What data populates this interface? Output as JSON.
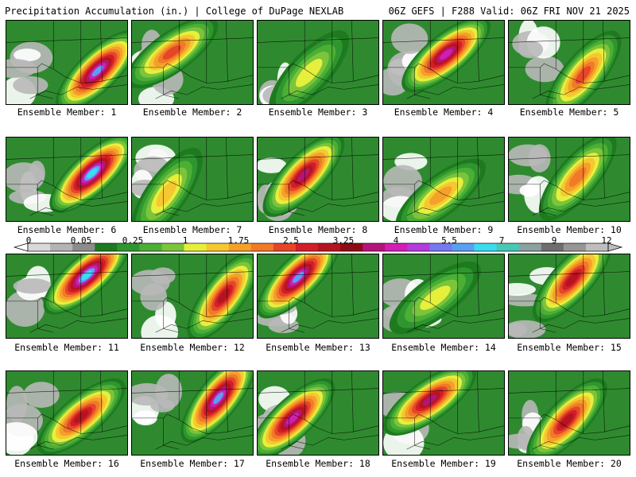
{
  "header": {
    "left": "Precipitation Accumulation (in.) | College of DuPage NEXLAB",
    "right": "06Z GEFS | F288 Valid: 06Z FRI NOV 21 2025"
  },
  "colorbar": {
    "labels": [
      "0",
      "0.05",
      "0.25",
      "1",
      "1.75",
      "2.5",
      "3.25",
      "4",
      "5.5",
      "7",
      "9",
      "12"
    ],
    "colors": [
      "#d9d9d9",
      "#b3b3b3",
      "#8c8c8c",
      "#1e7a1e",
      "#2f962f",
      "#4caf35",
      "#7cc43c",
      "#e6f03c",
      "#f5c832",
      "#f5a028",
      "#f07a28",
      "#e64628",
      "#d21e28",
      "#b4141e",
      "#8c0a14",
      "#b4147a",
      "#d21eb4",
      "#b43cdc",
      "#7878f0",
      "#5aa0f0",
      "#3cdcf0",
      "#46c8b4",
      "#8ca0a0",
      "#6e6e6e",
      "#969696",
      "#bebebe"
    ]
  },
  "panels": [
    {
      "caption": "Ensemble Member: 1",
      "intensity": 0.95,
      "seed": 1
    },
    {
      "caption": "Ensemble Member: 2",
      "intensity": 0.6,
      "seed": 2
    },
    {
      "caption": "Ensemble Member: 3",
      "intensity": 0.35,
      "seed": 3
    },
    {
      "caption": "Ensemble Member: 4",
      "intensity": 0.85,
      "seed": 4
    },
    {
      "caption": "Ensemble Member: 5",
      "intensity": 0.6,
      "seed": 5
    },
    {
      "caption": "Ensemble Member: 6",
      "intensity": 1.0,
      "seed": 6
    },
    {
      "caption": "Ensemble Member: 7",
      "intensity": 0.4,
      "seed": 7
    },
    {
      "caption": "Ensemble Member: 8",
      "intensity": 0.8,
      "seed": 8
    },
    {
      "caption": "Ensemble Member: 9",
      "intensity": 0.45,
      "seed": 9
    },
    {
      "caption": "Ensemble Member: 10",
      "intensity": 0.55,
      "seed": 10
    },
    {
      "caption": "Ensemble Member: 11",
      "intensity": 1.0,
      "seed": 11
    },
    {
      "caption": "Ensemble Member: 12",
      "intensity": 0.7,
      "seed": 12
    },
    {
      "caption": "Ensemble Member: 13",
      "intensity": 0.95,
      "seed": 13
    },
    {
      "caption": "Ensemble Member: 14",
      "intensity": 0.3,
      "seed": 14
    },
    {
      "caption": "Ensemble Member: 15",
      "intensity": 0.75,
      "seed": 15
    },
    {
      "caption": "Ensemble Member: 16",
      "intensity": 0.7,
      "seed": 16
    },
    {
      "caption": "Ensemble Member: 17",
      "intensity": 0.95,
      "seed": 17
    },
    {
      "caption": "Ensemble Member: 18",
      "intensity": 0.85,
      "seed": 18
    },
    {
      "caption": "Ensemble Member: 19",
      "intensity": 0.8,
      "seed": 19
    },
    {
      "caption": "Ensemble Member: 20",
      "intensity": 0.7,
      "seed": 20
    }
  ]
}
